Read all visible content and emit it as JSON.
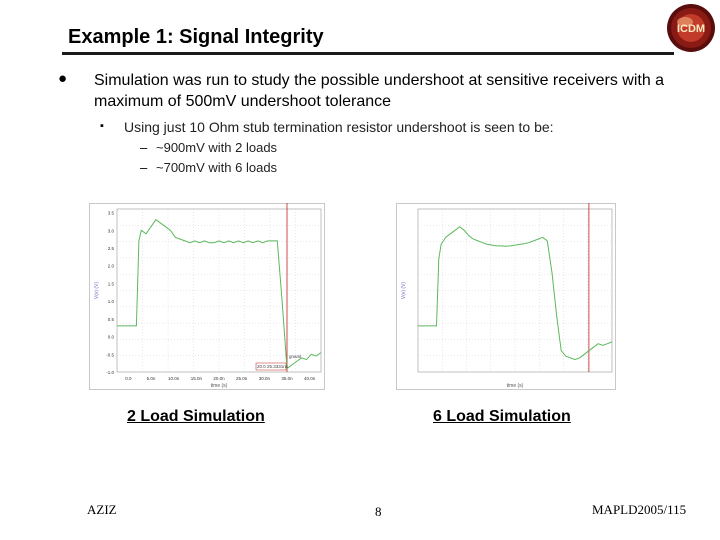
{
  "slide": {
    "title": "Example 1: Signal Integrity",
    "bullet_main": "Simulation was run to study the possible undershoot at sensitive receivers with a maximum of 500mV undershoot tolerance",
    "bullet_sub": "Using just 10 Ohm stub termination resistor undershoot is seen to be:",
    "sub_items": [
      "~900mV with 2 loads",
      "~700mV with 6 loads"
    ],
    "captions": [
      "2 Load Simulation",
      "6 Load Simulation"
    ],
    "footer": {
      "author": "AZIZ",
      "page": "8",
      "ref": "MAPLD2005/115"
    },
    "logo_text": "ICDM",
    "bullet_glyphs": {
      "level1": "●",
      "level2": "▪",
      "level3": "–"
    }
  },
  "chart_data": [
    {
      "type": "line",
      "ylabel": "V(v) (V)",
      "yticks": [
        "3.5",
        "3.0",
        "2.5",
        "2.0",
        "1.5",
        "1.0",
        "0.5",
        "0.0",
        "-0.5",
        "-1.0"
      ],
      "xticks": [
        "0.0",
        "5.0n",
        "10.0n",
        "15.0n",
        "20.0n",
        "25.0n",
        "30.0n",
        "35.0n",
        "40.0n"
      ],
      "xlabel": "time (s)",
      "ylim": [
        -1.0,
        3.6
      ],
      "xlim": [
        0,
        42
      ],
      "cursor_x": 35,
      "annotations": [
        "20.0 25.3331ns",
        "gnaml"
      ],
      "series": [
        {
          "x": [
            0,
            1,
            2,
            3,
            4,
            4.5,
            5,
            6,
            7,
            8,
            9,
            10,
            11,
            12,
            13,
            14,
            15,
            16,
            17,
            18,
            19,
            20,
            21,
            22,
            23,
            24,
            25,
            26,
            27,
            28,
            29,
            30,
            31,
            32,
            33,
            34,
            35,
            36,
            37,
            38,
            39,
            40,
            41,
            42
          ],
          "y": [
            0.3,
            0.3,
            0.3,
            0.3,
            0.3,
            2.7,
            3.0,
            2.9,
            3.1,
            3.3,
            3.2,
            3.1,
            3.0,
            2.8,
            2.75,
            2.7,
            2.65,
            2.7,
            2.65,
            2.7,
            2.65,
            2.65,
            2.7,
            2.65,
            2.7,
            2.65,
            2.7,
            2.65,
            2.7,
            2.65,
            2.7,
            2.65,
            2.7,
            2.7,
            2.7,
            1.0,
            -0.9,
            -0.8,
            -0.7,
            -0.6,
            -0.65,
            -0.5,
            -0.55,
            -0.45
          ]
        }
      ]
    },
    {
      "type": "line",
      "ylabel": "V(v) (V)",
      "yticks": [],
      "xticks": [],
      "xlabel": "time (s)",
      "ylim": [
        -1.0,
        3.6
      ],
      "xlim": [
        0,
        42
      ],
      "cursor_x": 37,
      "annotations": [],
      "series": [
        {
          "x": [
            0,
            1,
            2,
            3,
            4,
            4.5,
            5,
            6,
            7,
            8,
            9,
            10,
            11,
            12,
            13,
            14,
            15,
            16,
            17,
            18,
            19,
            20,
            21,
            22,
            23,
            24,
            25,
            26,
            27,
            28,
            29,
            30,
            31,
            32,
            33,
            34,
            35,
            36,
            37,
            38,
            39,
            40,
            41,
            42
          ],
          "y": [
            0.3,
            0.3,
            0.3,
            0.3,
            0.3,
            2.2,
            2.6,
            2.8,
            2.9,
            3.0,
            3.1,
            3.0,
            2.85,
            2.75,
            2.7,
            2.65,
            2.6,
            2.58,
            2.56,
            2.56,
            2.55,
            2.56,
            2.58,
            2.6,
            2.62,
            2.65,
            2.7,
            2.75,
            2.8,
            2.7,
            1.8,
            0.6,
            -0.4,
            -0.55,
            -0.6,
            -0.65,
            -0.6,
            -0.5,
            -0.4,
            -0.3,
            -0.2,
            -0.25,
            -0.2,
            -0.15
          ]
        }
      ]
    }
  ]
}
